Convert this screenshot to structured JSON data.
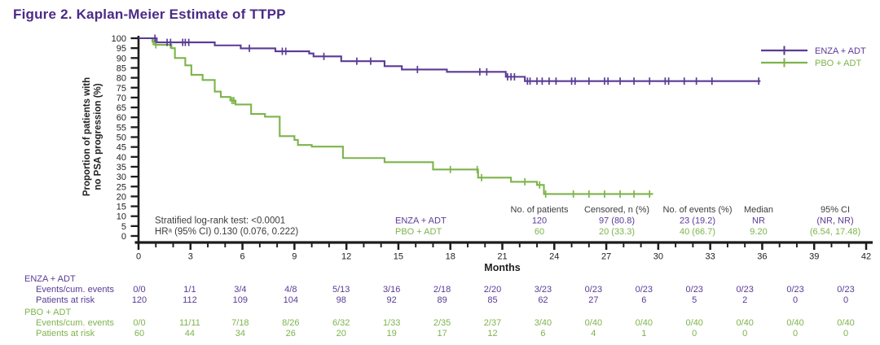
{
  "title": "Figure 2. Kaplan-Meier Estimate of TTPP",
  "colors": {
    "title": "#4b2a86",
    "enza": "#5a3a96",
    "pbo": "#7cb44b",
    "axis": "#1c1c1c",
    "text": "#3c3c3c"
  },
  "chart_data": {
    "type": "line",
    "subtype": "kaplan-meier-step",
    "title": "Figure 2. Kaplan-Meier Estimate of TTPP",
    "xlabel": "Months",
    "ylabel": "Proportion of patients with no PSA progression (%)",
    "ylabel_lines": [
      "Proportion of patients with",
      "no PSA progression (%)"
    ],
    "xlim": [
      0,
      42
    ],
    "ylim": [
      0,
      100
    ],
    "xtick_labels": [
      0,
      3,
      6,
      9,
      12,
      15,
      18,
      21,
      24,
      27,
      30,
      33,
      36,
      39,
      42
    ],
    "xtick_step_minor": 1,
    "ytick_labels": [
      0,
      5,
      10,
      15,
      20,
      25,
      30,
      35,
      40,
      45,
      50,
      55,
      60,
      65,
      70,
      75,
      80,
      85,
      90,
      95,
      100
    ],
    "grid": "off",
    "legend_position": "top-right",
    "legend": [
      {
        "key": "enza",
        "label": "ENZA + ADT"
      },
      {
        "key": "pbo",
        "label": "PBO + ADT"
      }
    ],
    "annotations": [
      "Stratified log-rank test: <0.0001",
      "HRᵃ (95% CI) 0.130 (0.076, 0.222)"
    ],
    "series": [
      {
        "key": "enza",
        "name": "ENZA + ADT",
        "steps": [
          [
            1.05,
            97.9
          ],
          [
            4.4,
            96.4
          ],
          [
            5.9,
            94.9
          ],
          [
            7.9,
            93.4
          ],
          [
            9.85,
            92.3
          ],
          [
            10.1,
            90.8
          ],
          [
            11.7,
            88.4
          ],
          [
            14.2,
            85.9
          ],
          [
            15.2,
            84.2
          ],
          [
            17.8,
            83.0
          ],
          [
            21.2,
            80.5
          ],
          [
            22.3,
            78.3
          ]
        ],
        "censors": [
          0.95,
          1.65,
          1.85,
          2.55,
          2.7,
          2.9,
          6.4,
          8.3,
          8.5,
          10.7,
          12.6,
          13.4,
          16.1,
          19.7,
          20.1,
          21.3,
          21.5,
          21.7,
          22.45,
          22.6,
          23.0,
          23.3,
          23.7,
          24.1,
          25.0,
          25.2,
          26.0,
          26.9,
          27.1,
          27.8,
          28.6,
          29.5,
          30.4,
          30.6,
          31.5,
          32.2,
          33.1,
          35.8
        ],
        "end": 35.9
      },
      {
        "key": "pbo",
        "name": "PBO + ADT",
        "steps": [
          [
            0.8,
            98.3
          ],
          [
            0.95,
            96.7
          ],
          [
            1.9,
            95.0
          ],
          [
            2.1,
            90.0
          ],
          [
            2.7,
            86.3
          ],
          [
            3.05,
            81.5
          ],
          [
            3.7,
            78.9
          ],
          [
            4.4,
            73.0
          ],
          [
            4.75,
            70.3
          ],
          [
            5.3,
            68.5
          ],
          [
            5.6,
            66.5
          ],
          [
            6.5,
            61.7
          ],
          [
            7.3,
            60.3
          ],
          [
            8.15,
            50.5
          ],
          [
            9.0,
            48.6
          ],
          [
            9.2,
            46.0
          ],
          [
            10.0,
            45.2
          ],
          [
            11.8,
            39.4
          ],
          [
            14.2,
            37.3
          ],
          [
            17.0,
            33.6
          ],
          [
            19.6,
            29.5
          ],
          [
            21.5,
            27.4
          ],
          [
            23.0,
            25.8
          ],
          [
            23.4,
            21.2
          ]
        ],
        "censors": [
          0.85,
          1.0,
          1.85,
          5.4,
          5.5,
          18.0,
          19.55,
          19.8,
          22.3,
          23.15,
          23.5,
          25.1,
          26.0,
          26.9,
          27.8,
          28.6,
          29.5
        ],
        "end": 29.7
      }
    ],
    "summary_table": {
      "headers": [
        "No. of patients",
        "Censored, n (%)",
        "No. of events (%)",
        "Median",
        "95% CI"
      ],
      "rows": [
        {
          "key": "enza",
          "label": "ENZA + ADT",
          "values": [
            "120",
            "97 (80.8)",
            "23 (19.2)",
            "NR",
            "(NR, NR)"
          ]
        },
        {
          "key": "pbo",
          "label": "PBO + ADT",
          "values": [
            "60",
            "20 (33.3)",
            "40 (66.7)",
            "9.20",
            "(6.54, 17.48)"
          ]
        }
      ]
    },
    "risk_table": {
      "months": [
        0,
        3,
        6,
        9,
        12,
        15,
        18,
        21,
        24,
        27,
        30,
        33,
        36,
        39,
        42
      ],
      "groups": [
        {
          "key": "enza",
          "label": "ENZA + ADT",
          "rows": [
            {
              "label": "Events/cum. events",
              "values": [
                "0/0",
                "1/1",
                "3/4",
                "4/8",
                "5/13",
                "3/16",
                "2/18",
                "2/20",
                "3/23",
                "0/23",
                "0/23",
                "0/23",
                "0/23",
                "0/23",
                "0/23"
              ]
            },
            {
              "label": "Patients at risk",
              "values": [
                "120",
                "112",
                "109",
                "104",
                "98",
                "92",
                "89",
                "85",
                "62",
                "27",
                "6",
                "5",
                "2",
                "0",
                "0"
              ]
            }
          ]
        },
        {
          "key": "pbo",
          "label": "PBO + ADT",
          "rows": [
            {
              "label": "Events/cum. events",
              "values": [
                "0/0",
                "11/11",
                "7/18",
                "8/26",
                "6/32",
                "1/33",
                "2/35",
                "2/37",
                "3/40",
                "0/40",
                "0/40",
                "0/40",
                "0/40",
                "0/40",
                "0/40"
              ]
            },
            {
              "label": "Patients at risk",
              "values": [
                "60",
                "44",
                "34",
                "26",
                "20",
                "19",
                "17",
                "12",
                "6",
                "4",
                "1",
                "0",
                "0",
                "0",
                "0"
              ]
            }
          ]
        }
      ]
    }
  }
}
